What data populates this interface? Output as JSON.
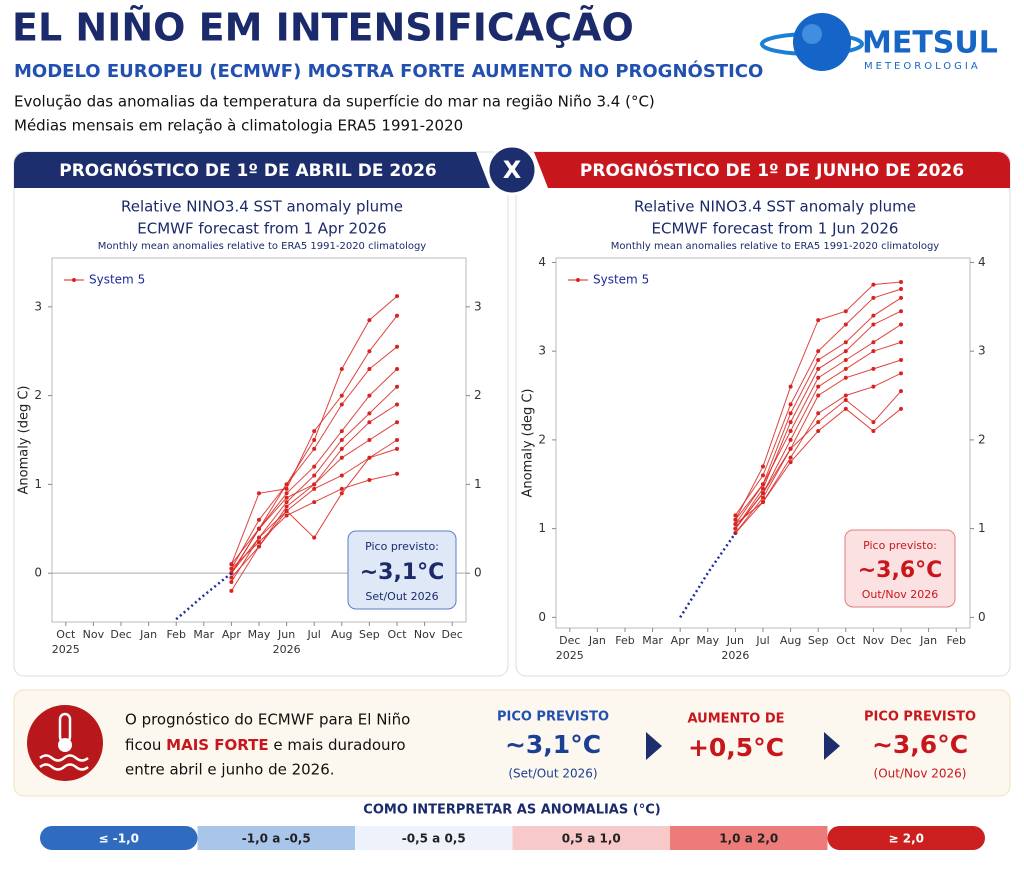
{
  "header": {
    "title": "EL NIÑO EM INTENSIFICAÇÃO",
    "subtitle": "MODELO EUROPEU (ECMWF) MOSTRA FORTE AUMENTO NO PROGNÓSTICO",
    "description": [
      "Evolução das anomalias da temperatura da superfície do mar na região Niño 3.4 (°C)",
      "Médias mensais em relação à climatologia ERA5 1991-2020"
    ],
    "logo": {
      "name": "METSUL",
      "tagline": "METEOROLOGIA"
    }
  },
  "versus": "X",
  "panels": [
    {
      "heading": "PROGNÓSTICO DE 1º DE ABRIL DE 2026",
      "peak": {
        "label": "Pico previsto:",
        "value": "~3,1°C",
        "period": "Set/Out 2026"
      }
    },
    {
      "heading": "PROGNÓSTICO DE 1º DE JUNHO DE 2026",
      "peak": {
        "label": "Pico previsto:",
        "value": "~3,6°C",
        "period": "Out/Nov 2026"
      }
    }
  ],
  "chart_data": [
    {
      "type": "line",
      "title": [
        "Relative NINO3.4 SST anomaly plume",
        "ECMWF forecast from 1 Apr 2026"
      ],
      "subtitle": "Monthly mean anomalies relative to ERA5 1991-2020 climatology",
      "y_label": "Anomaly (deg C)",
      "categories": [
        "Oct",
        "Nov",
        "Dec",
        "Jan",
        "Feb",
        "Mar",
        "Apr",
        "May",
        "Jun",
        "Jul",
        "Aug",
        "Sep",
        "Oct",
        "Nov",
        "Dec"
      ],
      "x_year_labels": [
        "2025",
        null,
        null,
        null,
        null,
        null,
        null,
        null,
        "2026",
        null,
        null,
        null,
        null,
        null,
        null
      ],
      "ylim": [
        -0.55,
        3.55
      ],
      "yticks": [
        0,
        1,
        2,
        3
      ],
      "right_axis": true,
      "zero_line": true,
      "legend": "upper left",
      "series": [
        {
          "name": "System 5",
          "color": "#d9231f",
          "values": [
            null,
            null,
            null,
            null,
            null,
            null,
            0.0,
            0.5,
            1.0,
            1.5,
            2.3,
            2.85,
            3.12,
            null,
            null
          ]
        },
        {
          "color": "#d9231f",
          "values": [
            null,
            null,
            null,
            null,
            null,
            null,
            0.1,
            0.9,
            0.95,
            1.6,
            2.0,
            2.5,
            2.9,
            null,
            null
          ]
        },
        {
          "color": "#d9231f",
          "values": [
            null,
            null,
            null,
            null,
            null,
            null,
            0.05,
            0.6,
            1.0,
            1.4,
            1.9,
            2.3,
            2.55,
            null,
            null
          ]
        },
        {
          "color": "#d9231f",
          "values": [
            null,
            null,
            null,
            null,
            null,
            null,
            0.0,
            0.5,
            0.9,
            1.2,
            1.6,
            2.0,
            2.3,
            null,
            null
          ]
        },
        {
          "color": "#d9231f",
          "values": [
            null,
            null,
            null,
            null,
            null,
            null,
            -0.1,
            0.4,
            0.8,
            1.1,
            1.5,
            1.8,
            2.1,
            null,
            null
          ]
        },
        {
          "color": "#d9231f",
          "values": [
            null,
            null,
            null,
            null,
            null,
            null,
            0.1,
            0.5,
            0.85,
            1.0,
            1.4,
            1.7,
            1.9,
            null,
            null
          ]
        },
        {
          "color": "#d9231f",
          "values": [
            null,
            null,
            null,
            null,
            null,
            null,
            -0.05,
            0.3,
            0.75,
            1.0,
            1.3,
            1.5,
            1.7,
            null,
            null
          ]
        },
        {
          "color": "#d9231f",
          "values": [
            null,
            null,
            null,
            null,
            null,
            null,
            0.0,
            0.4,
            0.7,
            0.4,
            0.9,
            1.3,
            1.5,
            null,
            null
          ]
        },
        {
          "color": "#d9231f",
          "values": [
            null,
            null,
            null,
            null,
            null,
            null,
            -0.2,
            0.3,
            0.7,
            0.95,
            1.1,
            1.3,
            1.4,
            null,
            null
          ]
        },
        {
          "color": "#d9231f",
          "values": [
            null,
            null,
            null,
            null,
            null,
            null,
            0.05,
            0.35,
            0.65,
            0.8,
            0.95,
            1.05,
            1.12,
            null,
            null
          ]
        },
        {
          "color": "#1f2d9c",
          "line_style": "dotted",
          "values": [
            null,
            null,
            null,
            null,
            -0.52,
            -0.25,
            0.0,
            null,
            null,
            null,
            null,
            null,
            null,
            null,
            null
          ]
        }
      ]
    },
    {
      "type": "line",
      "title": [
        "Relative NINO3.4 SST anomaly plume",
        "ECMWF forecast from 1 Jun 2026"
      ],
      "subtitle": "Monthly mean anomalies relative to ERA5 1991-2020 climatology",
      "y_label": "Anomaly (deg C)",
      "categories": [
        "Dec",
        "Jan",
        "Feb",
        "Mar",
        "Apr",
        "May",
        "Jun",
        "Jul",
        "Aug",
        "Sep",
        "Oct",
        "Nov",
        "Dec",
        "Jan",
        "Feb"
      ],
      "x_year_labels": [
        "2025",
        null,
        null,
        null,
        null,
        null,
        "2026",
        null,
        null,
        null,
        null,
        null,
        null,
        null,
        null
      ],
      "ylim": [
        -0.12,
        4.05
      ],
      "yticks": [
        0,
        1,
        2,
        3,
        4
      ],
      "right_axis": true,
      "zero_line": false,
      "legend": "upper left",
      "series": [
        {
          "name": "System 5",
          "color": "#d9231f",
          "values": [
            null,
            null,
            null,
            null,
            null,
            null,
            1.1,
            1.7,
            2.6,
            3.35,
            3.45,
            3.75,
            3.78,
            null,
            null
          ]
        },
        {
          "color": "#d9231f",
          "values": [
            null,
            null,
            null,
            null,
            null,
            null,
            1.15,
            1.6,
            2.4,
            3.0,
            3.3,
            3.6,
            3.7,
            null,
            null
          ]
        },
        {
          "color": "#d9231f",
          "values": [
            null,
            null,
            null,
            null,
            null,
            null,
            1.05,
            1.5,
            2.3,
            2.9,
            3.1,
            3.4,
            3.6,
            null,
            null
          ]
        },
        {
          "color": "#d9231f",
          "values": [
            null,
            null,
            null,
            null,
            null,
            null,
            1.0,
            1.45,
            2.2,
            2.8,
            3.0,
            3.3,
            3.45,
            null,
            null
          ]
        },
        {
          "color": "#d9231f",
          "values": [
            null,
            null,
            null,
            null,
            null,
            null,
            1.1,
            1.5,
            2.1,
            2.7,
            2.9,
            3.1,
            3.3,
            null,
            null
          ]
        },
        {
          "color": "#d9231f",
          "values": [
            null,
            null,
            null,
            null,
            null,
            null,
            1.0,
            1.4,
            2.0,
            2.6,
            2.8,
            3.0,
            3.1,
            null,
            null
          ]
        },
        {
          "color": "#d9231f",
          "values": [
            null,
            null,
            null,
            null,
            null,
            null,
            0.95,
            1.35,
            1.9,
            2.5,
            2.7,
            2.8,
            2.9,
            null,
            null
          ]
        },
        {
          "color": "#d9231f",
          "values": [
            null,
            null,
            null,
            null,
            null,
            null,
            1.05,
            1.3,
            1.8,
            2.3,
            2.5,
            2.6,
            2.75,
            null,
            null
          ]
        },
        {
          "color": "#d9231f",
          "values": [
            null,
            null,
            null,
            null,
            null,
            null,
            1.0,
            1.4,
            1.9,
            2.2,
            2.45,
            2.2,
            2.55,
            null,
            null
          ]
        },
        {
          "color": "#d9231f",
          "values": [
            null,
            null,
            null,
            null,
            null,
            null,
            0.95,
            1.3,
            1.75,
            2.1,
            2.35,
            2.1,
            2.35,
            null,
            null
          ]
        },
        {
          "color": "#1f2d9c",
          "line_style": "dotted",
          "values": [
            null,
            null,
            null,
            null,
            0.0,
            0.5,
            0.95,
            null,
            null,
            null,
            null,
            null,
            null,
            null,
            null
          ]
        }
      ]
    }
  ],
  "summary": {
    "text": [
      "O prognóstico do ECMWF para El Niño",
      [
        "ficou ",
        "MAIS FORTE",
        " e mais duradouro"
      ],
      "entre abril e junho de 2026."
    ],
    "stats": [
      {
        "label": "PICO PREVISTO",
        "value": "~3,1°C",
        "period": "(Set/Out 2026)"
      },
      {
        "label": "AUMENTO DE",
        "value": "+0,5°C"
      },
      {
        "label": "PICO PREVISTO",
        "value": "~3,6°C",
        "period": "(Out/Nov 2026)"
      }
    ]
  },
  "scale": {
    "title": "COMO INTERPRETAR AS ANOMALIAS (°C)",
    "bins": [
      {
        "label": "≤ -1,0",
        "color": "#2f6cc0"
      },
      {
        "label": "-1,0 a -0,5",
        "color": "#aac5ea"
      },
      {
        "label": "-0,5 a 0,5",
        "color": "#eef2fb"
      },
      {
        "label": "0,5 a 1,0",
        "color": "#f7c9c8"
      },
      {
        "label": "1,0 a 2,0",
        "color": "#ec7b79"
      },
      {
        "label": "≥ 2,0",
        "color": "#cc1f1f"
      }
    ]
  }
}
